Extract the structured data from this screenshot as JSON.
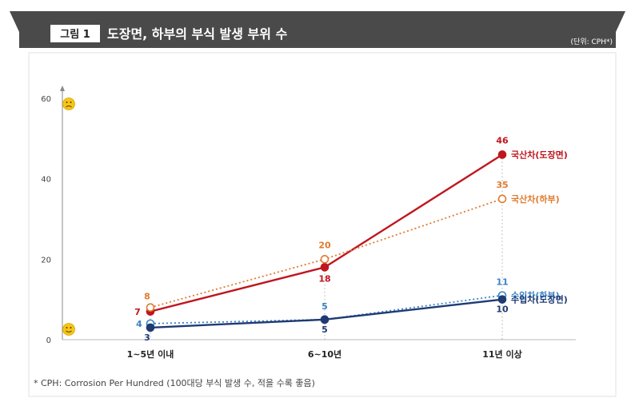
{
  "header": {
    "badge": "그림 1",
    "title": "도장면, 하부의 부식 발생 부위 수",
    "unit": "(단위: CPH*)"
  },
  "footnote": "* CPH: Corrosion Per Hundred (100대당 부식 발생 수, 적을 수록 좋음)",
  "colors": {
    "header_band": "#4a4a4a",
    "domestic_paint": "#c0161f",
    "domestic_under": "#e07a2e",
    "import_under": "#3b82c4",
    "import_paint": "#1f3b73",
    "emoji": "#f5c518"
  },
  "icons": {
    "top_axis_icon": "sad-face-icon",
    "bottom_axis_icon": "happy-face-icon"
  },
  "chart_data": {
    "type": "line",
    "categories": [
      "1~5년 이내",
      "6~10년",
      "11년 이상"
    ],
    "ylim": [
      0,
      60
    ],
    "yticks": [
      0,
      20,
      40,
      60
    ],
    "grid": false,
    "xlabel": "",
    "ylabel": "",
    "series": [
      {
        "key": "domestic_paint",
        "name": "국산차(도장면)",
        "values": [
          7,
          18,
          46
        ],
        "marker": "filled",
        "line": "solid",
        "color": "#c0161f"
      },
      {
        "key": "domestic_under",
        "name": "국산차(하부)",
        "values": [
          8,
          20,
          35
        ],
        "marker": "open",
        "line": "dotted",
        "color": "#e07a2e"
      },
      {
        "key": "import_under",
        "name": "수입차(하부)",
        "values": [
          4,
          5,
          11
        ],
        "marker": "open",
        "line": "dotted",
        "color": "#3b82c4"
      },
      {
        "key": "import_paint",
        "name": "수입차(도장면)",
        "values": [
          3,
          5,
          10
        ],
        "marker": "filled",
        "line": "solid",
        "color": "#1f3b73"
      }
    ]
  }
}
